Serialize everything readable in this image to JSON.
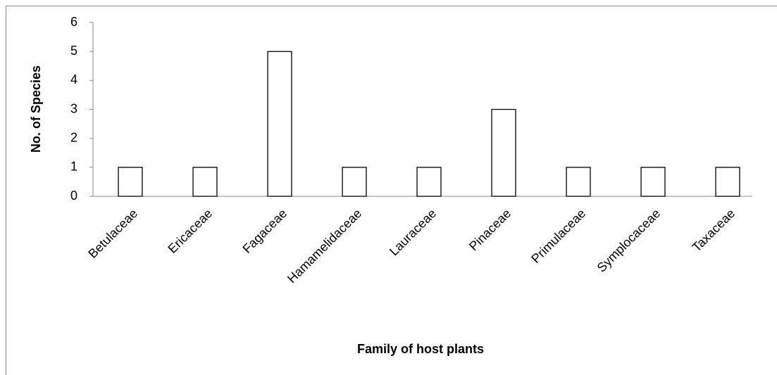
{
  "chart_data": {
    "type": "bar",
    "xlabel": "Family of host plants",
    "ylabel": "No. of Species",
    "categories": [
      "Betulaceae",
      "Ericaceae",
      "Fagaceae",
      "Hamamelidaceae",
      "Lauraceae",
      "Pinaceae",
      "Primulaceae",
      "Symplocaceae",
      "Taxaceae"
    ],
    "values": [
      1,
      1,
      5,
      1,
      1,
      3,
      1,
      1,
      1
    ],
    "color": "#ffffff",
    "edgecolor": "#000000",
    "ylim": [
      0,
      6
    ],
    "yticks": [
      0,
      1,
      2,
      3,
      4,
      5,
      6
    ],
    "grid": false
  }
}
